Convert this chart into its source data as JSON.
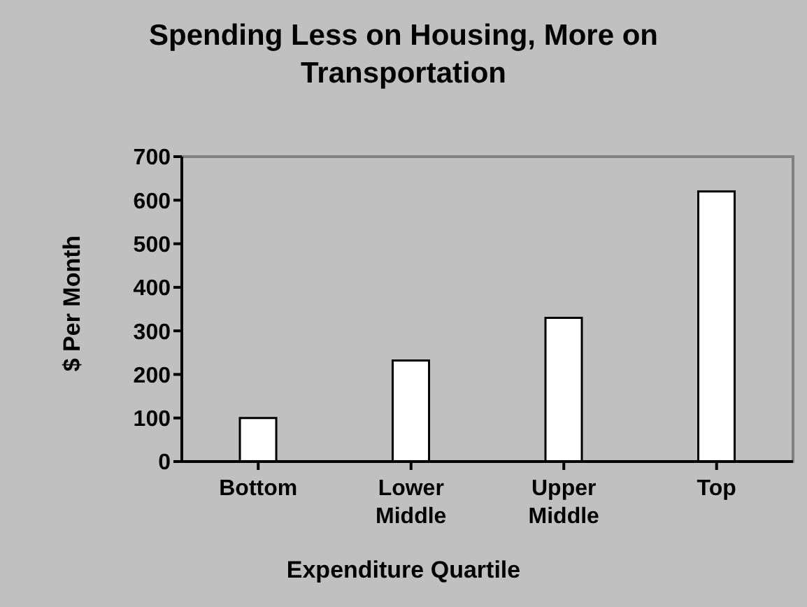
{
  "chart_data": {
    "type": "bar",
    "title": "Spending Less on Housing, More on Transportation",
    "xlabel": "Expenditure Quartile",
    "ylabel": "$ Per Month",
    "categories": [
      "Bottom",
      "Lower Middle",
      "Upper Middle",
      "Top"
    ],
    "values": [
      100,
      232,
      330,
      620
    ],
    "color": "#ffffff",
    "ylim": [
      0,
      700
    ],
    "yticks": [
      0,
      100,
      200,
      300,
      400,
      500,
      600,
      700
    ]
  }
}
